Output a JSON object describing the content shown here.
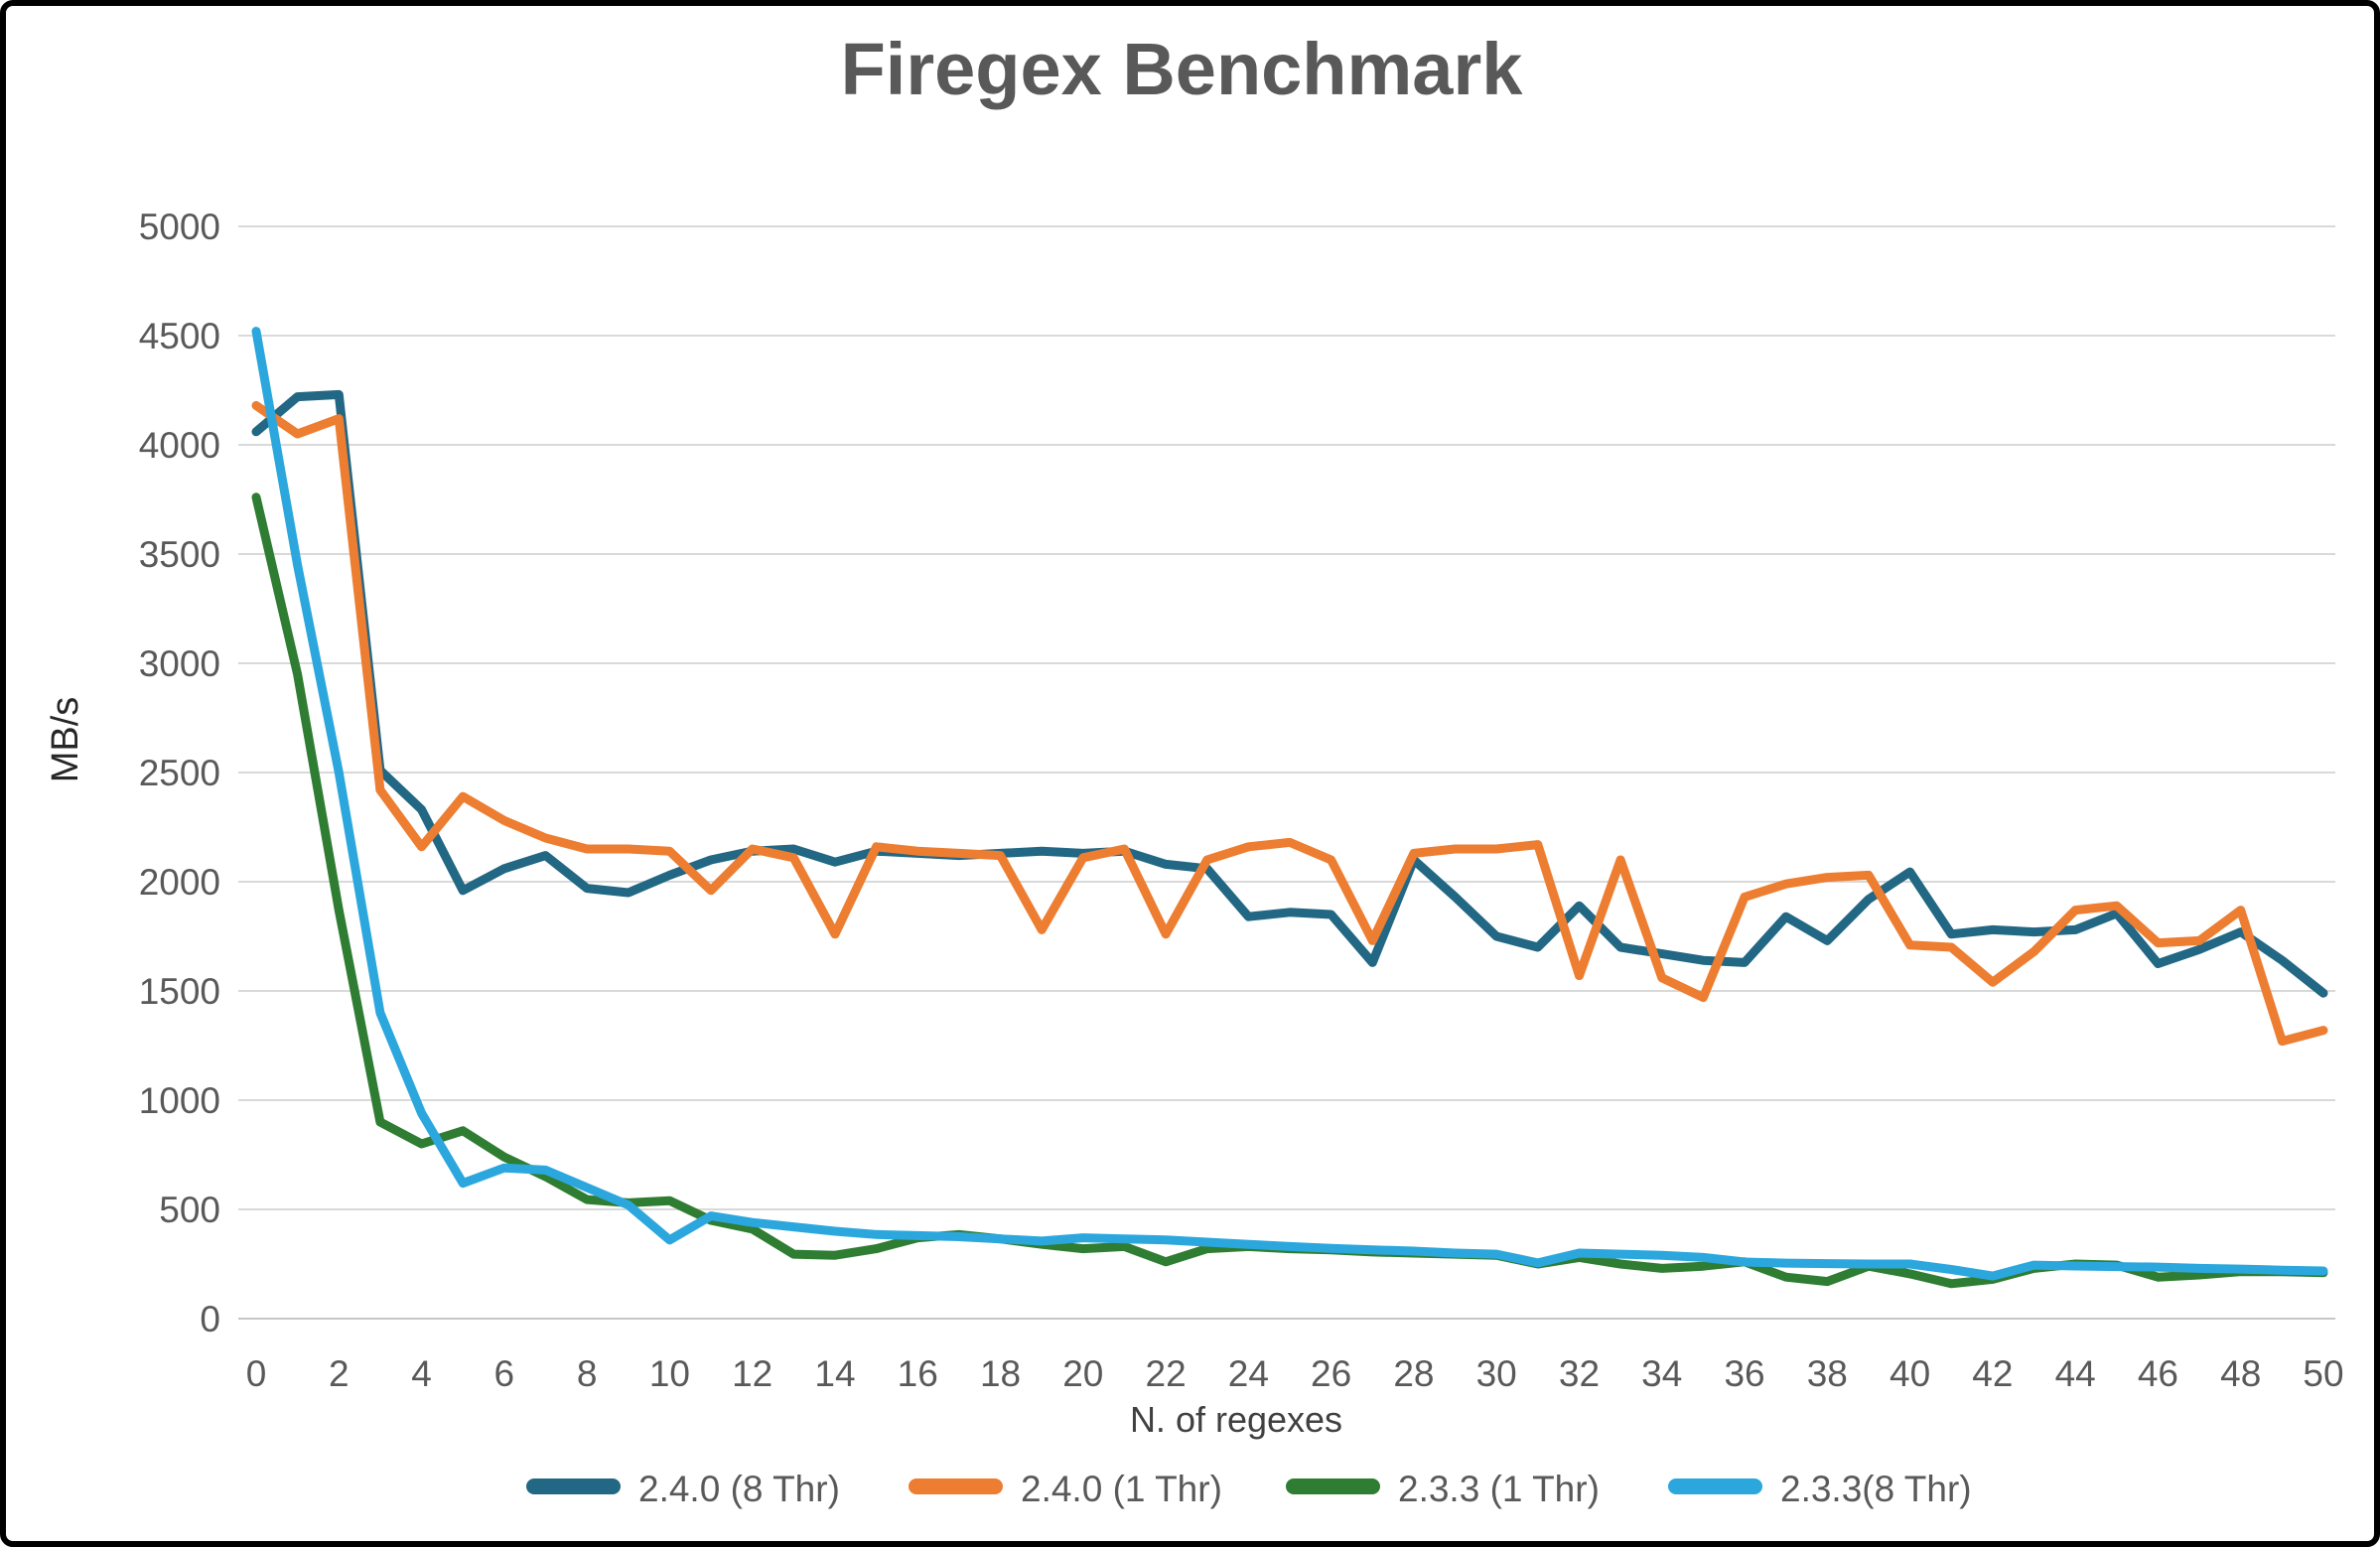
{
  "title": "Firegex Benchmark",
  "colors": {
    "title_text": "#595959",
    "tick_text": "#595959",
    "axis_title_text": "#262626",
    "gridline": "#D9D9D9",
    "axis_line": "#C6C6C6",
    "border": "#000000",
    "background": "#FFFFFF"
  },
  "chart_data": {
    "type": "line",
    "title": "Firegex Benchmark",
    "xlabel": "N. of regexes",
    "ylabel": "MB/s",
    "xlim": [
      0,
      50
    ],
    "ylim": [
      0,
      5000
    ],
    "y_tick_step": 500,
    "x_tick_step": 2,
    "grid": true,
    "legend_position": "bottom",
    "x": [
      0,
      1,
      2,
      3,
      4,
      5,
      6,
      7,
      8,
      9,
      10,
      11,
      12,
      13,
      14,
      15,
      16,
      17,
      18,
      19,
      20,
      21,
      22,
      23,
      24,
      25,
      26,
      27,
      28,
      29,
      30,
      31,
      32,
      33,
      34,
      35,
      36,
      37,
      38,
      39,
      40,
      41,
      42,
      43,
      44,
      45,
      46,
      47,
      48,
      49,
      50
    ],
    "series": [
      {
        "name": "2.4.0 (8 Thr)",
        "color": "#226783",
        "values": [
          4060,
          4220,
          4230,
          2510,
          2330,
          1960,
          2060,
          2120,
          1970,
          1950,
          2030,
          2100,
          2140,
          2150,
          2090,
          2140,
          2130,
          2120,
          2130,
          2140,
          2130,
          2140,
          2080,
          2060,
          1840,
          1860,
          1850,
          1630,
          2100,
          1930,
          1750,
          1700,
          1890,
          1700,
          1670,
          1640,
          1630,
          1840,
          1730,
          1920,
          2045,
          1760,
          1780,
          1770,
          1780,
          1855,
          1625,
          1690,
          1770,
          1640,
          1490
        ]
      },
      {
        "name": "2.4.0 (1 Thr)",
        "color": "#ED7D31",
        "values": [
          4180,
          4050,
          4120,
          2420,
          2160,
          2390,
          2280,
          2200,
          2150,
          2150,
          2140,
          1960,
          2150,
          2110,
          1760,
          2160,
          2140,
          2130,
          2120,
          1780,
          2110,
          2150,
          1760,
          2100,
          2160,
          2180,
          2100,
          1730,
          2130,
          2150,
          2150,
          2170,
          1570,
          2100,
          1560,
          1470,
          1930,
          1990,
          2020,
          2030,
          1710,
          1700,
          1540,
          1680,
          1870,
          1890,
          1720,
          1730,
          1870,
          1270,
          1320
        ]
      },
      {
        "name": "2.3.3 (1 Thr)",
        "color": "#2E7D32",
        "values": [
          3760,
          2950,
          1870,
          900,
          800,
          860,
          740,
          650,
          545,
          530,
          540,
          450,
          410,
          295,
          290,
          320,
          370,
          385,
          365,
          340,
          320,
          330,
          260,
          320,
          330,
          320,
          315,
          305,
          300,
          295,
          290,
          250,
          280,
          250,
          230,
          240,
          260,
          190,
          170,
          240,
          205,
          160,
          180,
          230,
          250,
          245,
          190,
          200,
          215,
          215,
          210
        ]
      },
      {
        "name": "2.3.3(8 Thr)",
        "color": "#2BA7DE",
        "values": [
          4520,
          3450,
          2500,
          1400,
          940,
          620,
          690,
          680,
          600,
          520,
          360,
          470,
          440,
          420,
          400,
          385,
          380,
          375,
          365,
          355,
          370,
          365,
          360,
          350,
          340,
          330,
          322,
          315,
          309,
          300,
          295,
          255,
          300,
          295,
          290,
          280,
          259,
          254,
          252,
          250,
          250,
          225,
          195,
          245,
          241,
          238,
          236,
          230,
          227,
          222,
          218
        ]
      }
    ]
  }
}
